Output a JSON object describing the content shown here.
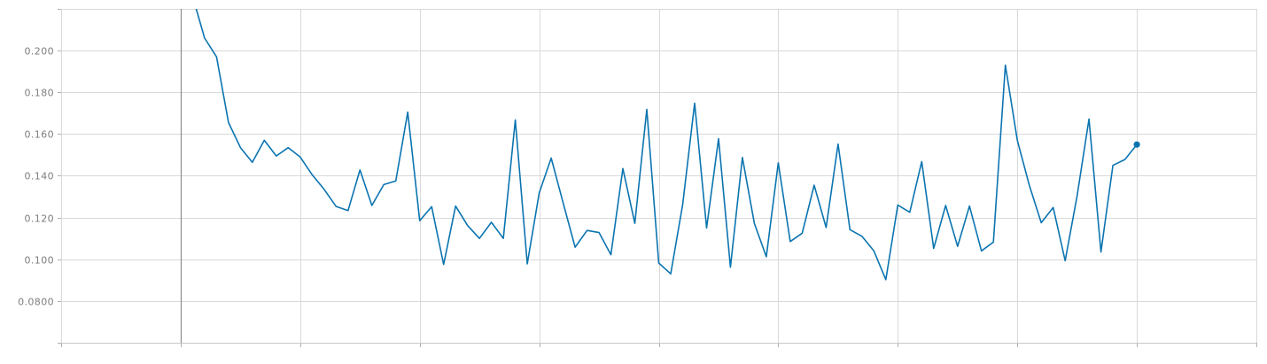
{
  "colors": {
    "series": "#0b74b0",
    "grid": "#d9d9d9",
    "cursor": "#8c8c8c"
  },
  "chart_data": {
    "type": "line",
    "title": "",
    "xlabel": "",
    "ylabel": "",
    "grid": true,
    "ylim": [
      0.06,
      0.22
    ],
    "yticks": [
      {
        "value": 0.08,
        "label": "0.0800"
      },
      {
        "value": 0.1,
        "label": "0.100"
      },
      {
        "value": 0.12,
        "label": "0.120"
      },
      {
        "value": 0.14,
        "label": "0.140"
      },
      {
        "value": 0.16,
        "label": "0.160"
      },
      {
        "value": 0.18,
        "label": "0.180"
      },
      {
        "value": 0.2,
        "label": "0.200"
      }
    ],
    "xlim": [
      0,
      100
    ],
    "cursor_x": 10,
    "series": [
      {
        "values": [
          [
            11.2,
            0.222
          ],
          [
            12,
            0.206
          ],
          [
            13,
            0.197
          ],
          [
            14,
            0.1655
          ],
          [
            15,
            0.1535
          ],
          [
            16,
            0.1465
          ],
          [
            17,
            0.157
          ],
          [
            18,
            0.1495
          ],
          [
            19,
            0.1535
          ],
          [
            20,
            0.149
          ],
          [
            21,
            0.1405
          ],
          [
            22,
            0.1335
          ],
          [
            23,
            0.1253
          ],
          [
            24,
            0.1233
          ],
          [
            25,
            0.1428
          ],
          [
            26,
            0.1258
          ],
          [
            27,
            0.1358
          ],
          [
            28,
            0.1375
          ],
          [
            29,
            0.1705
          ],
          [
            30,
            0.1185
          ],
          [
            31,
            0.1252
          ],
          [
            32,
            0.0975
          ],
          [
            33,
            0.1255
          ],
          [
            34,
            0.1162
          ],
          [
            35,
            0.11
          ],
          [
            36,
            0.1177
          ],
          [
            37,
            0.11
          ],
          [
            38,
            0.1668
          ],
          [
            39,
            0.0978
          ],
          [
            40,
            0.1318
          ],
          [
            41,
            0.1485
          ],
          [
            42,
            0.127
          ],
          [
            43,
            0.1058
          ],
          [
            44,
            0.1138
          ],
          [
            45,
            0.1128
          ],
          [
            46,
            0.1022
          ],
          [
            47,
            0.1435
          ],
          [
            48,
            0.1172
          ],
          [
            49,
            0.1718
          ],
          [
            50,
            0.0982
          ],
          [
            51,
            0.093
          ],
          [
            52,
            0.1262
          ],
          [
            53,
            0.1748
          ],
          [
            54,
            0.115
          ],
          [
            55,
            0.1578
          ],
          [
            56,
            0.0962
          ],
          [
            57,
            0.1488
          ],
          [
            58,
            0.1172
          ],
          [
            59,
            0.1012
          ],
          [
            60,
            0.1462
          ],
          [
            61,
            0.1085
          ],
          [
            62,
            0.1125
          ],
          [
            63,
            0.1355
          ],
          [
            64,
            0.1152
          ],
          [
            65,
            0.1552
          ],
          [
            66,
            0.1142
          ],
          [
            67,
            0.111
          ],
          [
            68,
            0.104
          ],
          [
            69,
            0.0902
          ],
          [
            70,
            0.126
          ],
          [
            71,
            0.1225
          ],
          [
            72,
            0.1468
          ],
          [
            73,
            0.1052
          ],
          [
            74,
            0.1258
          ],
          [
            75,
            0.1062
          ],
          [
            76,
            0.1255
          ],
          [
            77,
            0.104
          ],
          [
            78,
            0.1082
          ],
          [
            79,
            0.193
          ],
          [
            80,
            0.157
          ],
          [
            81,
            0.1355
          ],
          [
            82,
            0.1175
          ],
          [
            83,
            0.1248
          ],
          [
            84,
            0.0993
          ],
          [
            85,
            0.1302
          ],
          [
            86,
            0.1672
          ],
          [
            87,
            0.1035
          ],
          [
            88,
            0.145
          ],
          [
            89,
            0.1478
          ],
          [
            90,
            0.155
          ]
        ]
      }
    ]
  }
}
